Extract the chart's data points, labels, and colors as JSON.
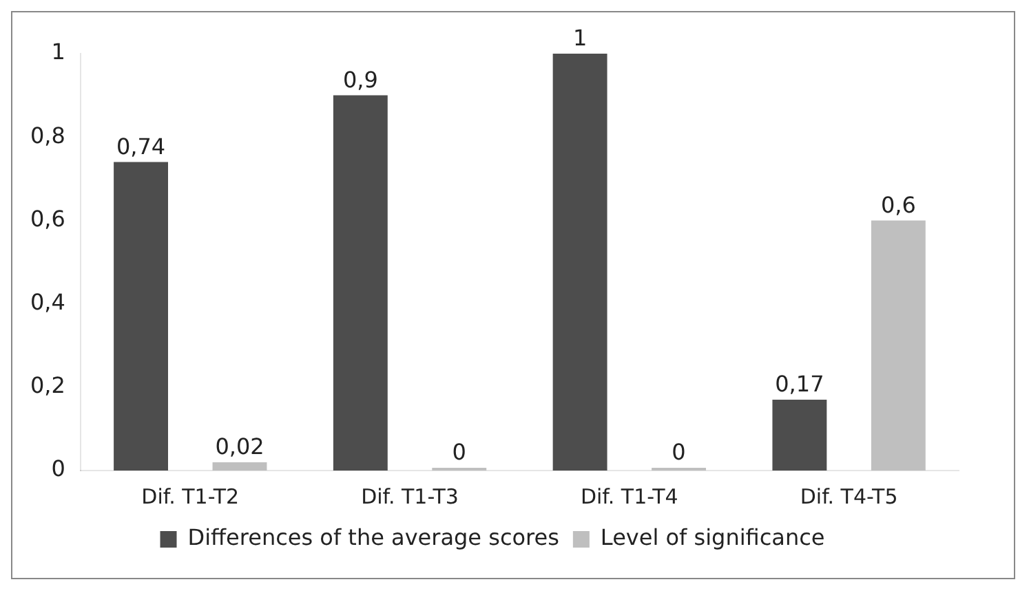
{
  "chart_data": {
    "type": "bar",
    "categories": [
      "Dif. T1-T2",
      "Dif. T1-T3",
      "Dif. T1-T4",
      "Dif. T4-T5"
    ],
    "series": [
      {
        "name": "Differences of the average scores",
        "color": "#4d4d4d",
        "values": [
          0.74,
          0.9,
          1,
          0.17
        ],
        "value_labels": [
          "0,74",
          "0,9",
          "1",
          "0,17"
        ]
      },
      {
        "name": "Level of significance",
        "color": "#bfbfbf",
        "values": [
          0.02,
          0,
          0,
          0.6
        ],
        "value_labels": [
          "0,02",
          "0",
          "0",
          "0,6"
        ]
      }
    ],
    "ylim": [
      0,
      1
    ],
    "yticks": [
      0,
      {
        "value": 0.2,
        "label": "0,2"
      },
      {
        "value": 0.4,
        "label": "0,4"
      },
      {
        "value": 0.6,
        "label": "0,6"
      },
      {
        "value": 0.8,
        "label": "0,8"
      },
      1
    ],
    "legend": "bottom"
  }
}
